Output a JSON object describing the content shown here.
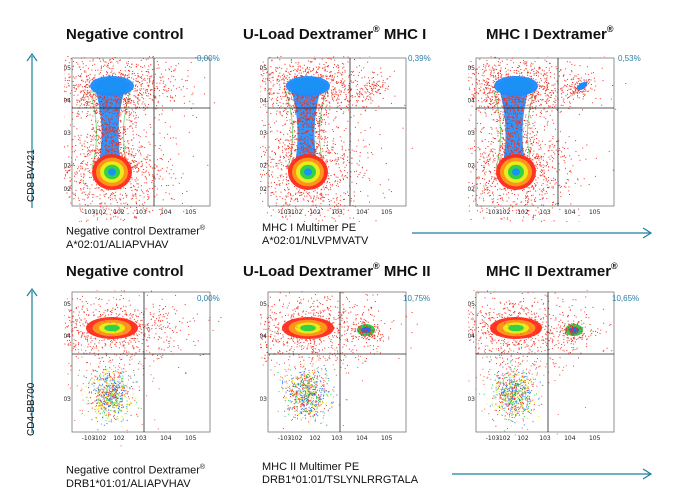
{
  "colors": {
    "accent": "#1a7fa0",
    "text": "#111111",
    "pct": "#2a7fa8"
  },
  "top_row": {
    "y_axis_label": "CD8 BV421",
    "panels": [
      {
        "title": "Negative control",
        "title_sup": "",
        "percent": "0,00%",
        "caption_line1": "Negative control Dextramer",
        "caption_sup": "®",
        "caption_line2": "A*02:01/ALIAPVHAV"
      },
      {
        "title": "U-Load Dextramer",
        "title_sup": "®",
        "title_suffix": " MHC I",
        "percent": "0,39%",
        "caption_line1": "MHC I Multimer PE",
        "caption_sup": "",
        "caption_line2": "A*02:01/NLVPMVATV"
      },
      {
        "title": "MHC I Dextramer",
        "title_sup": "®",
        "percent": "0,53%"
      }
    ]
  },
  "bottom_row": {
    "y_axis_label": "CD4-BB700",
    "panels": [
      {
        "title": "Negative control",
        "title_sup": "",
        "percent": "0,00%",
        "caption_line1": "Negative control Dextramer",
        "caption_sup": "®",
        "caption_line2": "DRB1*01:01/ALIAPVHAV"
      },
      {
        "title": "U-Load Dextramer",
        "title_sup": "®",
        "title_suffix": " MHC II",
        "percent": "10,75%",
        "caption_line1": "MHC II Multimer PE",
        "caption_sup": "",
        "caption_line2": "DRB1*01:01/TSLYNLRRGTALA"
      },
      {
        "title": "MHC II Dextramer",
        "title_sup": "®",
        "percent": "10,65%"
      }
    ]
  },
  "chart_data": [
    {
      "type": "scatter",
      "title": "Negative control",
      "row": "MHC I",
      "ylabel": "CD8 BV421",
      "xlabel": "",
      "quadrant_percent": 0.0,
      "x_ticks": [
        "-10^3",
        "-10^2",
        "10^2",
        "10^3",
        "10^4",
        "10^5"
      ],
      "y_ticks": [
        "10^5",
        "10^4",
        "10^3",
        "10^2",
        "-10^2"
      ],
      "populations": [
        "CD8+ upper-left",
        "CD8- lower-left"
      ]
    },
    {
      "type": "scatter",
      "title": "U-Load Dextramer® MHC I",
      "row": "MHC I",
      "ylabel": "CD8 BV421",
      "quadrant_percent": 0.39,
      "x_ticks": [
        "-10^3",
        "-10^2",
        "10^2",
        "10^3",
        "10^4",
        "10^5"
      ],
      "y_ticks": [
        "10^5",
        "10^4",
        "10^3",
        "10^2",
        "-10^2"
      ],
      "populations": [
        "CD8+ upper-left",
        "CD8- lower-left",
        "multimer+ upper-right"
      ]
    },
    {
      "type": "scatter",
      "title": "MHC I Dextramer®",
      "row": "MHC I",
      "ylabel": "CD8 BV421",
      "quadrant_percent": 0.53,
      "x_ticks": [
        "-10^3",
        "-10^2",
        "10^2",
        "10^3",
        "10^4",
        "10^5"
      ],
      "y_ticks": [
        "10^5",
        "10^4",
        "10^3",
        "10^2",
        "-10^2"
      ],
      "populations": [
        "CD8+ upper-left",
        "CD8- lower-left",
        "multimer+ upper-right"
      ]
    },
    {
      "type": "scatter",
      "title": "Negative control",
      "row": "MHC II",
      "ylabel": "CD4-BB700",
      "quadrant_percent": 0.0,
      "x_ticks": [
        "-10^3",
        "-10^2",
        "10^2",
        "10^3",
        "10^4",
        "10^5"
      ],
      "y_ticks": [
        "10^5",
        "10^4",
        "-10^3"
      ],
      "populations": [
        "CD4+ upper-left",
        "CD4- lower-left"
      ]
    },
    {
      "type": "scatter",
      "title": "U-Load Dextramer® MHC II",
      "row": "MHC II",
      "ylabel": "CD4-BB700",
      "quadrant_percent": 10.75,
      "x_ticks": [
        "-10^3",
        "-10^2",
        "10^2",
        "10^3",
        "10^4",
        "10^5"
      ],
      "y_ticks": [
        "10^5",
        "10^4",
        "-10^3"
      ],
      "populations": [
        "CD4+ upper-left",
        "CD4- lower-left",
        "multimer+ upper-right"
      ]
    },
    {
      "type": "scatter",
      "title": "MHC II Dextramer®",
      "row": "MHC II",
      "ylabel": "CD4-BB700",
      "quadrant_percent": 10.65,
      "x_ticks": [
        "-10^3",
        "-10^2",
        "10^2",
        "10^3",
        "10^4",
        "10^5"
      ],
      "y_ticks": [
        "10^5",
        "10^4",
        "-10^3"
      ],
      "populations": [
        "CD4+ upper-left",
        "CD4- lower-left",
        "multimer+ upper-right"
      ]
    }
  ]
}
